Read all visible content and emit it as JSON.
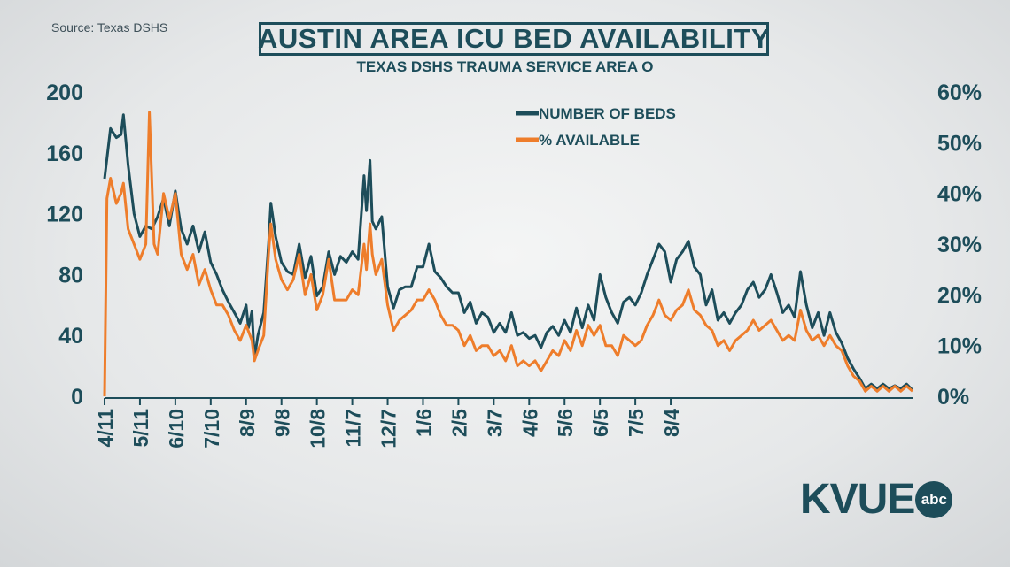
{
  "source": "Source: Texas DSHS",
  "logo": {
    "text": "KVUE",
    "badge": "abc"
  },
  "chart_data": {
    "type": "line",
    "title": "AUSTIN AREA ICU BED AVAILABILITY",
    "subtitle": "TEXAS DSHS TRAUMA SERVICE AREA O",
    "x_tick_labels": [
      "4/11",
      "5/11",
      "6/10",
      "7/10",
      "8/9",
      "9/8",
      "10/8",
      "11/7",
      "12/7",
      "1/6",
      "2/5",
      "3/7",
      "4/6",
      "5/6",
      "6/5",
      "7/5",
      "8/4"
    ],
    "left_axis": {
      "ticks": [
        "0",
        "40",
        "80",
        "120",
        "160",
        "200"
      ],
      "range": [
        0,
        200
      ]
    },
    "right_axis": {
      "ticks": [
        "0%",
        "10%",
        "20%",
        "30%",
        "40%",
        "50%",
        "60%"
      ],
      "range": [
        0,
        60
      ]
    },
    "legend": [
      "NUMBER OF BEDS",
      "% AVAILABLE"
    ],
    "legend_position": "top-center",
    "colors": {
      "beds": "#1d4d5a",
      "percent": "#ee7d2b"
    },
    "series": [
      {
        "name": "NUMBER OF BEDS",
        "axis": "left",
        "points": [
          [
            0,
            143
          ],
          [
            5,
            176
          ],
          [
            10,
            170
          ],
          [
            14,
            172
          ],
          [
            16,
            185
          ],
          [
            20,
            152
          ],
          [
            25,
            120
          ],
          [
            30,
            105
          ],
          [
            35,
            112
          ],
          [
            40,
            110
          ],
          [
            45,
            118
          ],
          [
            50,
            130
          ],
          [
            55,
            112
          ],
          [
            60,
            135
          ],
          [
            65,
            110
          ],
          [
            70,
            100
          ],
          [
            75,
            112
          ],
          [
            80,
            95
          ],
          [
            85,
            108
          ],
          [
            90,
            88
          ],
          [
            95,
            80
          ],
          [
            100,
            70
          ],
          [
            105,
            62
          ],
          [
            110,
            55
          ],
          [
            115,
            48
          ],
          [
            120,
            60
          ],
          [
            122,
            45
          ],
          [
            125,
            56
          ],
          [
            127,
            25
          ],
          [
            130,
            40
          ],
          [
            135,
            55
          ],
          [
            139,
            100
          ],
          [
            141,
            127
          ],
          [
            145,
            105
          ],
          [
            150,
            88
          ],
          [
            155,
            82
          ],
          [
            160,
            80
          ],
          [
            165,
            100
          ],
          [
            170,
            78
          ],
          [
            175,
            92
          ],
          [
            180,
            66
          ],
          [
            185,
            72
          ],
          [
            190,
            95
          ],
          [
            195,
            80
          ],
          [
            200,
            92
          ],
          [
            205,
            88
          ],
          [
            210,
            95
          ],
          [
            215,
            90
          ],
          [
            220,
            145
          ],
          [
            222,
            122
          ],
          [
            225,
            155
          ],
          [
            227,
            115
          ],
          [
            230,
            110
          ],
          [
            235,
            118
          ],
          [
            240,
            72
          ],
          [
            245,
            58
          ],
          [
            250,
            70
          ],
          [
            255,
            72
          ],
          [
            260,
            72
          ],
          [
            265,
            85
          ],
          [
            270,
            85
          ],
          [
            275,
            100
          ],
          [
            280,
            82
          ],
          [
            285,
            78
          ],
          [
            290,
            72
          ],
          [
            295,
            68
          ],
          [
            300,
            68
          ],
          [
            305,
            55
          ],
          [
            310,
            62
          ],
          [
            315,
            48
          ],
          [
            320,
            55
          ],
          [
            325,
            52
          ],
          [
            330,
            42
          ],
          [
            335,
            48
          ],
          [
            340,
            42
          ],
          [
            345,
            55
          ],
          [
            350,
            40
          ],
          [
            355,
            42
          ],
          [
            360,
            38
          ],
          [
            365,
            40
          ],
          [
            370,
            32
          ],
          [
            375,
            42
          ],
          [
            380,
            46
          ],
          [
            385,
            40
          ],
          [
            390,
            50
          ],
          [
            395,
            42
          ],
          [
            400,
            58
          ],
          [
            405,
            45
          ],
          [
            410,
            60
          ],
          [
            415,
            50
          ],
          [
            420,
            80
          ],
          [
            425,
            65
          ],
          [
            430,
            55
          ],
          [
            435,
            48
          ],
          [
            440,
            62
          ],
          [
            445,
            65
          ],
          [
            450,
            60
          ],
          [
            455,
            68
          ],
          [
            460,
            80
          ],
          [
            465,
            90
          ],
          [
            470,
            100
          ],
          [
            475,
            95
          ],
          [
            480,
            75
          ],
          [
            485,
            90
          ],
          [
            490,
            95
          ],
          [
            495,
            102
          ],
          [
            500,
            85
          ],
          [
            505,
            80
          ],
          [
            510,
            60
          ],
          [
            515,
            70
          ],
          [
            520,
            50
          ],
          [
            525,
            55
          ],
          [
            530,
            48
          ],
          [
            535,
            55
          ],
          [
            540,
            60
          ],
          [
            545,
            70
          ],
          [
            550,
            75
          ],
          [
            555,
            65
          ],
          [
            560,
            70
          ],
          [
            565,
            80
          ],
          [
            570,
            68
          ],
          [
            575,
            55
          ],
          [
            580,
            60
          ],
          [
            585,
            52
          ],
          [
            590,
            82
          ],
          [
            595,
            60
          ],
          [
            600,
            45
          ],
          [
            605,
            55
          ],
          [
            610,
            40
          ],
          [
            615,
            55
          ],
          [
            620,
            42
          ],
          [
            625,
            35
          ],
          [
            630,
            25
          ],
          [
            635,
            18
          ],
          [
            640,
            12
          ],
          [
            645,
            5
          ],
          [
            650,
            8
          ],
          [
            655,
            5
          ],
          [
            660,
            8
          ],
          [
            665,
            5
          ],
          [
            670,
            7
          ],
          [
            675,
            5
          ],
          [
            680,
            8
          ],
          [
            685,
            4
          ]
        ]
      },
      {
        "name": "% AVAILABLE",
        "axis": "right",
        "points": [
          [
            0,
            0
          ],
          [
            2,
            39
          ],
          [
            5,
            43
          ],
          [
            10,
            38
          ],
          [
            14,
            40
          ],
          [
            16,
            42
          ],
          [
            20,
            33
          ],
          [
            25,
            30
          ],
          [
            30,
            27
          ],
          [
            35,
            30
          ],
          [
            38,
            56
          ],
          [
            42,
            30
          ],
          [
            45,
            28
          ],
          [
            50,
            40
          ],
          [
            55,
            35
          ],
          [
            60,
            40
          ],
          [
            65,
            28
          ],
          [
            70,
            25
          ],
          [
            75,
            28
          ],
          [
            80,
            22
          ],
          [
            85,
            25
          ],
          [
            90,
            21
          ],
          [
            95,
            18
          ],
          [
            100,
            18
          ],
          [
            105,
            16
          ],
          [
            110,
            13
          ],
          [
            115,
            11
          ],
          [
            120,
            14
          ],
          [
            125,
            11
          ],
          [
            127,
            7
          ],
          [
            130,
            9
          ],
          [
            135,
            12
          ],
          [
            139,
            28
          ],
          [
            141,
            34
          ],
          [
            145,
            27
          ],
          [
            150,
            23
          ],
          [
            155,
            21
          ],
          [
            160,
            23
          ],
          [
            165,
            28
          ],
          [
            170,
            20
          ],
          [
            175,
            24
          ],
          [
            180,
            17
          ],
          [
            185,
            20
          ],
          [
            190,
            27
          ],
          [
            195,
            19
          ],
          [
            200,
            19
          ],
          [
            205,
            19
          ],
          [
            210,
            21
          ],
          [
            215,
            20
          ],
          [
            220,
            30
          ],
          [
            222,
            25
          ],
          [
            225,
            34
          ],
          [
            227,
            28
          ],
          [
            230,
            24
          ],
          [
            235,
            27
          ],
          [
            240,
            18
          ],
          [
            245,
            13
          ],
          [
            250,
            15
          ],
          [
            255,
            16
          ],
          [
            260,
            17
          ],
          [
            265,
            19
          ],
          [
            270,
            19
          ],
          [
            275,
            21
          ],
          [
            280,
            19
          ],
          [
            285,
            16
          ],
          [
            290,
            14
          ],
          [
            295,
            14
          ],
          [
            300,
            13
          ],
          [
            305,
            10
          ],
          [
            310,
            12
          ],
          [
            315,
            9
          ],
          [
            320,
            10
          ],
          [
            325,
            10
          ],
          [
            330,
            8
          ],
          [
            335,
            9
          ],
          [
            340,
            7
          ],
          [
            345,
            10
          ],
          [
            350,
            6
          ],
          [
            355,
            7
          ],
          [
            360,
            6
          ],
          [
            365,
            7
          ],
          [
            370,
            5
          ],
          [
            375,
            7
          ],
          [
            380,
            9
          ],
          [
            385,
            8
          ],
          [
            390,
            11
          ],
          [
            395,
            9
          ],
          [
            400,
            13
          ],
          [
            405,
            10
          ],
          [
            410,
            14
          ],
          [
            415,
            12
          ],
          [
            420,
            14
          ],
          [
            425,
            10
          ],
          [
            430,
            10
          ],
          [
            435,
            8
          ],
          [
            440,
            12
          ],
          [
            445,
            11
          ],
          [
            450,
            10
          ],
          [
            455,
            11
          ],
          [
            460,
            14
          ],
          [
            465,
            16
          ],
          [
            470,
            19
          ],
          [
            475,
            16
          ],
          [
            480,
            15
          ],
          [
            485,
            17
          ],
          [
            490,
            18
          ],
          [
            495,
            21
          ],
          [
            500,
            17
          ],
          [
            505,
            16
          ],
          [
            510,
            14
          ],
          [
            515,
            13
          ],
          [
            520,
            10
          ],
          [
            525,
            11
          ],
          [
            530,
            9
          ],
          [
            535,
            11
          ],
          [
            540,
            12
          ],
          [
            545,
            13
          ],
          [
            550,
            15
          ],
          [
            555,
            13
          ],
          [
            560,
            14
          ],
          [
            565,
            15
          ],
          [
            570,
            13
          ],
          [
            575,
            11
          ],
          [
            580,
            12
          ],
          [
            585,
            11
          ],
          [
            590,
            17
          ],
          [
            595,
            13
          ],
          [
            600,
            11
          ],
          [
            605,
            12
          ],
          [
            610,
            10
          ],
          [
            615,
            12
          ],
          [
            620,
            10
          ],
          [
            625,
            9
          ],
          [
            630,
            6
          ],
          [
            635,
            4
          ],
          [
            640,
            3
          ],
          [
            645,
            1
          ],
          [
            650,
            2
          ],
          [
            655,
            1
          ],
          [
            660,
            2
          ],
          [
            665,
            1
          ],
          [
            670,
            2
          ],
          [
            675,
            1
          ],
          [
            680,
            2
          ],
          [
            685,
            1
          ]
        ]
      }
    ]
  }
}
